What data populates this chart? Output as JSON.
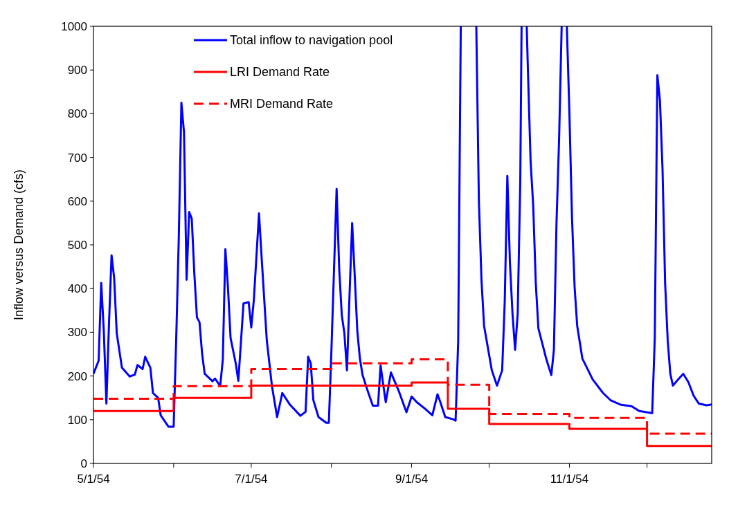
{
  "chart_data": {
    "type": "line",
    "ylabel": "Inflow versus Demand (cfs)",
    "xlim": [
      "1954-05-01",
      "1954-12-26"
    ],
    "xticks": [
      {
        "value": "1954-05-01",
        "label": "5/1/54"
      },
      {
        "value": "1954-06-01",
        "label": null
      },
      {
        "value": "1954-07-01",
        "label": "7/1/54"
      },
      {
        "value": "1954-08-01",
        "label": null
      },
      {
        "value": "1954-09-01",
        "label": "9/1/54"
      },
      {
        "value": "1954-10-01",
        "label": null
      },
      {
        "value": "1954-11-01",
        "label": "11/1/54"
      },
      {
        "value": "1954-12-01",
        "label": null
      }
    ],
    "ylim": [
      0,
      1000
    ],
    "yticks": [
      0,
      100,
      200,
      300,
      400,
      500,
      600,
      700,
      800,
      900,
      1000
    ],
    "legend": "top",
    "series": [
      {
        "name": "Total inflow to navigation pool",
        "color": "#0000ff",
        "line_style": "solid",
        "x": [
          "1954-05-01",
          "1954-05-03",
          "1954-05-04",
          "1954-05-05",
          "1954-05-06",
          "1954-05-07",
          "1954-05-08",
          "1954-05-09",
          "1954-05-10",
          "1954-05-12",
          "1954-05-15",
          "1954-05-17",
          "1954-05-18",
          "1954-05-20",
          "1954-05-21",
          "1954-05-23",
          "1954-05-24",
          "1954-05-26",
          "1954-05-27",
          "1954-05-30",
          "1954-06-01",
          "1954-06-02",
          "1954-06-03",
          "1954-06-04",
          "1954-06-05",
          "1954-06-06",
          "1954-06-07",
          "1954-06-08",
          "1954-06-09",
          "1954-06-10",
          "1954-06-11",
          "1954-06-12",
          "1954-06-13",
          "1954-06-16",
          "1954-06-17",
          "1954-06-19",
          "1954-06-20",
          "1954-06-21",
          "1954-06-22",
          "1954-06-23",
          "1954-06-25",
          "1954-06-26",
          "1954-06-27",
          "1954-06-28",
          "1954-06-30",
          "1954-07-01",
          "1954-07-02",
          "1954-07-04",
          "1954-07-05",
          "1954-07-07",
          "1954-07-09",
          "1954-07-11",
          "1954-07-13",
          "1954-07-16",
          "1954-07-20",
          "1954-07-22",
          "1954-07-23",
          "1954-07-24",
          "1954-07-25",
          "1954-07-27",
          "1954-07-30",
          "1954-07-31",
          "1954-08-01",
          "1954-08-03",
          "1954-08-04",
          "1954-08-05",
          "1954-08-06",
          "1954-08-07",
          "1954-08-08",
          "1954-08-09",
          "1954-08-10",
          "1954-08-11",
          "1954-08-12",
          "1954-08-13",
          "1954-08-15",
          "1954-08-17",
          "1954-08-19",
          "1954-08-20",
          "1954-08-21",
          "1954-08-22",
          "1954-08-24",
          "1954-08-27",
          "1954-08-30",
          "1954-09-01",
          "1954-09-03",
          "1954-09-06",
          "1954-09-09",
          "1954-09-11",
          "1954-09-12",
          "1954-09-14",
          "1954-09-17",
          "1954-09-18",
          "1954-09-19",
          "1954-09-20",
          "1954-09-23",
          "1954-09-26",
          "1954-09-27",
          "1954-09-28",
          "1954-09-29",
          "1954-10-02",
          "1954-10-04",
          "1954-10-06",
          "1954-10-07",
          "1954-10-08",
          "1954-10-09",
          "1954-10-10",
          "1954-10-11",
          "1954-10-12",
          "1954-10-13",
          "1954-10-13T12:00",
          "1954-10-14T12:00",
          "1954-10-15T12:00",
          "1954-10-16",
          "1954-10-17",
          "1954-10-18",
          "1954-10-19",
          "1954-10-20",
          "1954-10-23",
          "1954-10-25",
          "1954-10-26",
          "1954-10-27",
          "1954-10-28",
          "1954-10-29",
          "1954-10-30",
          "1954-10-31",
          "1954-11-01",
          "1954-11-02",
          "1954-11-03",
          "1954-11-04",
          "1954-11-06",
          "1954-11-10",
          "1954-11-14",
          "1954-11-17",
          "1954-11-21",
          "1954-11-25",
          "1954-11-28",
          "1954-12-03",
          "1954-12-04",
          "1954-12-05",
          "1954-12-06",
          "1954-12-07",
          "1954-12-08",
          "1954-12-09",
          "1954-12-10",
          "1954-12-11",
          "1954-12-13",
          "1954-12-15",
          "1954-12-17",
          "1954-12-19",
          "1954-12-21",
          "1954-12-24",
          "1954-12-26"
        ],
        "values": [
          205,
          235,
          413,
          303,
          137,
          319,
          476,
          424,
          298,
          219,
          199,
          203,
          225,
          216,
          244,
          219,
          161,
          150,
          110,
          84,
          84,
          287,
          520,
          825,
          757,
          420,
          575,
          560,
          434,
          334,
          323,
          251,
          205,
          188,
          194,
          177,
          237,
          490,
          402,
          287,
          229,
          189,
          276,
          366,
          369,
          311,
          374,
          572,
          472,
          282,
          177,
          106,
          161,
          134,
          109,
          118,
          244,
          229,
          145,
          106,
          93,
          93,
          260,
          628,
          445,
          339,
          298,
          213,
          386,
          550,
          429,
          303,
          240,
          203,
          166,
          132,
          132,
          224,
          181,
          140,
          208,
          166,
          117,
          153,
          140,
          126,
          110,
          158,
          142,
          106,
          101,
          98,
          280,
          1000,
          null,
          1000,
          600,
          420,
          315,
          213,
          178,
          213,
          371,
          658,
          459,
          342,
          260,
          342,
          645,
          1000,
          null,
          1000,
          890,
          690,
          590,
          412,
          309,
          240,
          202,
          260,
          549,
          740,
          1000,
          null,
          1000,
          800,
          562,
          404,
          315,
          240,
          192,
          161,
          144,
          134,
          131,
          120,
          115,
          287,
          888,
          830,
          672,
          412,
          281,
          205,
          178,
          192,
          205,
          186,
          155,
          137,
          133,
          135
        ]
      },
      {
        "name": "LRI Demand Rate",
        "type": "step",
        "color": "#ff0000",
        "line_style": "solid",
        "x": [
          "1954-05-01",
          "1954-06-01",
          "1954-07-01",
          "1954-09-01",
          "1954-09-15",
          "1954-10-01",
          "1954-11-01",
          "1954-12-01",
          "1954-12-26"
        ],
        "values": [
          120,
          150,
          178,
          185,
          125,
          90,
          79,
          40,
          40
        ]
      },
      {
        "name": "MRI Demand Rate",
        "type": "step",
        "color": "#ff0000",
        "line_style": "dashed",
        "x": [
          "1954-05-01",
          "1954-06-01",
          "1954-07-01",
          "1954-08-01",
          "1954-09-01",
          "1954-09-15",
          "1954-10-01",
          "1954-11-01",
          "1954-12-01",
          "1954-12-26"
        ],
        "values": [
          148,
          177,
          216,
          229,
          238,
          180,
          113,
          104,
          68,
          68
        ]
      }
    ]
  }
}
